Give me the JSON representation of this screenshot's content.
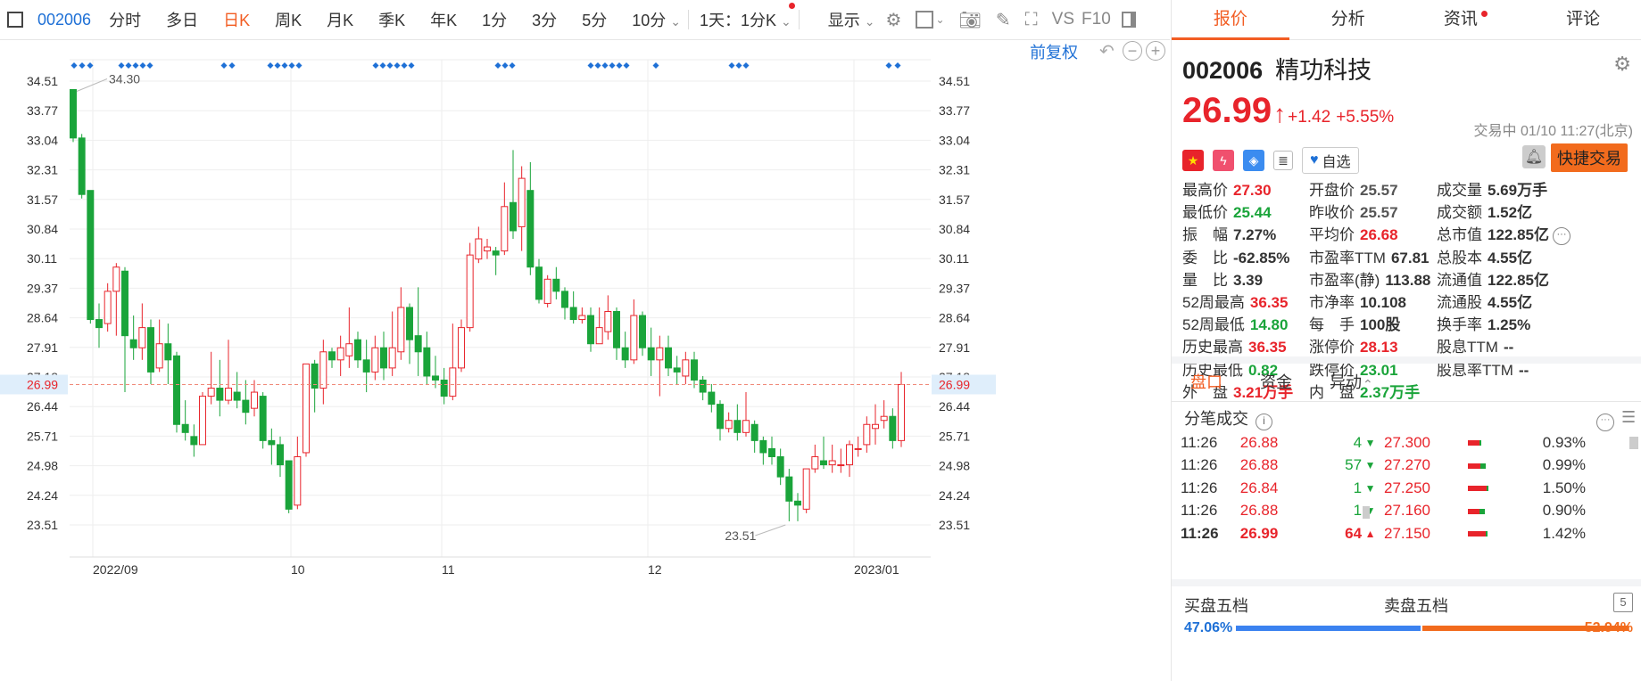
{
  "toolbar": {
    "code": "002006",
    "tabs": [
      "分时",
      "多日",
      "日K",
      "周K",
      "月K",
      "季K",
      "年K",
      "1分",
      "3分",
      "5分",
      "10分"
    ],
    "active_tab": "日K",
    "period_select": "1天：1分K",
    "display_select": "显示",
    "vs_label": "VS",
    "f10_label": "F10"
  },
  "chart": {
    "adjust_label": "前复权",
    "current_price_tag": "26.99",
    "y_ticks": [
      "34.51",
      "33.77",
      "33.04",
      "32.31",
      "31.57",
      "30.84",
      "30.11",
      "29.37",
      "28.64",
      "27.91",
      "27.18",
      "26.44",
      "25.71",
      "24.98",
      "24.24",
      "23.51"
    ],
    "x_labels": [
      "2022/09",
      "10",
      "11",
      "12",
      "2023/01"
    ],
    "high_label": "34.30",
    "low_label": "23.51"
  },
  "chart_data": {
    "type": "candlestick",
    "ylim": [
      23.2,
      34.8
    ],
    "current_price": 26.99,
    "max_annotation": 34.3,
    "min_annotation": 23.51,
    "candles": [
      [
        34.3,
        33.1,
        34.3,
        33.0
      ],
      [
        33.1,
        31.7,
        33.2,
        31.6
      ],
      [
        31.8,
        28.6,
        31.8,
        28.5
      ],
      [
        28.6,
        28.4,
        29.0,
        27.9
      ],
      [
        28.5,
        29.3,
        29.5,
        28.3
      ],
      [
        29.3,
        29.9,
        30.0,
        28.2
      ],
      [
        29.8,
        28.2,
        29.9,
        26.8
      ],
      [
        28.1,
        27.9,
        28.7,
        27.6
      ],
      [
        27.9,
        28.4,
        29.0,
        27.6
      ],
      [
        28.4,
        27.3,
        28.6,
        27.0
      ],
      [
        27.4,
        28.0,
        28.6,
        27.3
      ],
      [
        28.0,
        27.6,
        28.5,
        27.0
      ],
      [
        27.7,
        26.0,
        27.8,
        25.8
      ],
      [
        26.0,
        25.8,
        26.6,
        25.6
      ],
      [
        25.7,
        25.5,
        26.0,
        25.2
      ],
      [
        25.5,
        26.7,
        26.8,
        25.5
      ],
      [
        26.7,
        26.9,
        27.8,
        26.5
      ],
      [
        26.9,
        26.6,
        27.6,
        26.2
      ],
      [
        26.6,
        26.9,
        28.1,
        26.5
      ],
      [
        26.8,
        26.6,
        27.3,
        26.4
      ],
      [
        26.6,
        26.3,
        27.1,
        26.0
      ],
      [
        26.4,
        26.8,
        27.1,
        26.2
      ],
      [
        26.7,
        25.6,
        26.8,
        25.4
      ],
      [
        25.6,
        25.5,
        25.9,
        25.0
      ],
      [
        25.5,
        25.0,
        25.7,
        24.7
      ],
      [
        25.1,
        23.9,
        25.1,
        23.8
      ],
      [
        24.0,
        25.2,
        25.7,
        23.9
      ],
      [
        25.3,
        27.5,
        27.5,
        25.2
      ],
      [
        27.5,
        26.9,
        27.6,
        26.3
      ],
      [
        26.9,
        27.8,
        28.1,
        26.5
      ],
      [
        27.8,
        27.6,
        27.9,
        27.4
      ],
      [
        27.6,
        27.9,
        28.2,
        27.2
      ],
      [
        27.7,
        28.0,
        28.9,
        27.4
      ],
      [
        28.1,
        27.6,
        28.3,
        27.4
      ],
      [
        27.6,
        27.3,
        28.1,
        26.8
      ],
      [
        27.3,
        27.9,
        28.2,
        27.1
      ],
      [
        27.9,
        27.4,
        28.3,
        27.1
      ],
      [
        27.4,
        27.9,
        28.8,
        27.2
      ],
      [
        27.8,
        28.9,
        29.4,
        27.6
      ],
      [
        28.9,
        28.1,
        29.0,
        27.5
      ],
      [
        28.2,
        27.8,
        29.4,
        27.2
      ],
      [
        27.9,
        27.2,
        28.3,
        27.0
      ],
      [
        27.2,
        27.1,
        27.7,
        26.9
      ],
      [
        27.1,
        26.7,
        27.4,
        26.5
      ],
      [
        26.7,
        27.4,
        28.5,
        26.6
      ],
      [
        27.4,
        28.4,
        28.6,
        27.3
      ],
      [
        28.4,
        30.2,
        30.5,
        28.3
      ],
      [
        30.1,
        30.6,
        30.9,
        30.0
      ],
      [
        30.3,
        30.4,
        30.6,
        30.1
      ],
      [
        30.3,
        30.2,
        30.4,
        29.7
      ],
      [
        30.3,
        31.4,
        32.0,
        30.2
      ],
      [
        31.5,
        30.8,
        32.8,
        30.6
      ],
      [
        30.9,
        32.1,
        32.4,
        30.3
      ],
      [
        31.8,
        29.9,
        32.5,
        29.7
      ],
      [
        29.9,
        29.1,
        30.1,
        29.0
      ],
      [
        29.0,
        29.6,
        29.7,
        28.9
      ],
      [
        29.6,
        29.3,
        29.9,
        29.1
      ],
      [
        29.3,
        28.9,
        29.4,
        28.6
      ],
      [
        28.9,
        28.6,
        29.3,
        28.5
      ],
      [
        28.6,
        28.7,
        28.9,
        28.5
      ],
      [
        28.7,
        28.0,
        28.9,
        27.8
      ],
      [
        28.0,
        28.4,
        28.9,
        28.1
      ],
      [
        28.3,
        28.8,
        29.2,
        28.1
      ],
      [
        28.8,
        27.9,
        28.9,
        27.6
      ],
      [
        27.9,
        27.6,
        28.3,
        27.4
      ],
      [
        27.6,
        28.7,
        29.1,
        27.5
      ],
      [
        28.7,
        27.9,
        28.8,
        27.7
      ],
      [
        27.9,
        27.6,
        28.4,
        27.2
      ],
      [
        27.6,
        27.9,
        28.2,
        26.7
      ],
      [
        27.9,
        27.4,
        28.2,
        27.2
      ],
      [
        27.4,
        27.3,
        27.7,
        27.0
      ],
      [
        27.2,
        27.6,
        27.8,
        27.0
      ],
      [
        27.6,
        27.1,
        27.8,
        26.9
      ],
      [
        27.1,
        26.8,
        27.2,
        26.6
      ],
      [
        26.8,
        26.5,
        27.0,
        26.3
      ],
      [
        26.5,
        25.9,
        26.6,
        25.6
      ],
      [
        25.9,
        26.1,
        26.3,
        25.8
      ],
      [
        26.1,
        25.8,
        26.5,
        25.6
      ],
      [
        25.8,
        26.1,
        26.8,
        25.7
      ],
      [
        26.0,
        25.6,
        26.1,
        25.3
      ],
      [
        25.6,
        25.3,
        25.7,
        25.0
      ],
      [
        25.4,
        25.2,
        25.7,
        25.0
      ],
      [
        25.2,
        24.7,
        25.4,
        24.5
      ],
      [
        24.7,
        24.1,
        24.9,
        23.6
      ],
      [
        24.1,
        24.0,
        24.3,
        23.6
      ],
      [
        23.9,
        24.9,
        24.9,
        23.8
      ],
      [
        24.9,
        25.2,
        25.5,
        24.8
      ],
      [
        25.1,
        25.0,
        25.7,
        24.9
      ],
      [
        25.0,
        25.1,
        25.5,
        24.8
      ],
      [
        25.0,
        25.0,
        25.4,
        24.8
      ],
      [
        25.0,
        25.5,
        25.6,
        24.7
      ],
      [
        25.4,
        25.4,
        25.7,
        25.2
      ],
      [
        25.5,
        26.0,
        26.2,
        25.3
      ],
      [
        25.9,
        26.0,
        26.5,
        25.5
      ],
      [
        26.1,
        26.2,
        26.6,
        25.9
      ],
      [
        26.2,
        25.6,
        26.4,
        25.4
      ],
      [
        25.6,
        26.99,
        27.3,
        25.44
      ]
    ]
  },
  "panel": {
    "tabs": [
      "报价",
      "分析",
      "资讯",
      "评论"
    ],
    "active_tab": "报价",
    "code": "002006",
    "name": "精功科技",
    "price": "26.99",
    "change": "+1.42",
    "change_pct": "+5.55%",
    "time_info": "交易中 01/10 11:27(北京)",
    "favorite_label": "自选",
    "quick_trade_label": "快捷交易",
    "stats": [
      [
        {
          "label": "最高价",
          "value": "27.30",
          "color": "red"
        },
        {
          "label": "开盘价",
          "value": "25.57",
          "color": "gray"
        },
        {
          "label": "成交量",
          "value": "5.69万手",
          "color": "dark"
        }
      ],
      [
        {
          "label": "最低价",
          "value": "25.44",
          "color": "green"
        },
        {
          "label": "昨收价",
          "value": "25.57",
          "color": "gray"
        },
        {
          "label": "成交额",
          "value": "1.52亿",
          "color": "dark"
        }
      ],
      [
        {
          "label": "振　幅",
          "value": "7.27%",
          "color": "dark"
        },
        {
          "label": "平均价",
          "value": "26.68",
          "color": "red"
        },
        {
          "label": "总市值",
          "value": "122.85亿",
          "color": "dark"
        }
      ],
      [
        {
          "label": "委　比",
          "value": "-62.85%",
          "color": "dark"
        },
        {
          "label": "市盈率TTM",
          "value": "67.81",
          "color": "dark"
        },
        {
          "label": "总股本",
          "value": "4.55亿",
          "color": "dark"
        }
      ],
      [
        {
          "label": "量　比",
          "value": "3.39",
          "color": "dark"
        },
        {
          "label": "市盈率(静)",
          "value": "113.88",
          "color": "dark"
        },
        {
          "label": "流通值",
          "value": "122.85亿",
          "color": "dark"
        }
      ],
      [
        {
          "label": "52周最高",
          "value": "36.35",
          "color": "red"
        },
        {
          "label": "市净率",
          "value": "10.108",
          "color": "dark"
        },
        {
          "label": "流通股",
          "value": "4.55亿",
          "color": "dark"
        }
      ],
      [
        {
          "label": "52周最低",
          "value": "14.80",
          "color": "green"
        },
        {
          "label": "每　手",
          "value": "100股",
          "color": "dark"
        },
        {
          "label": "换手率",
          "value": "1.25%",
          "color": "dark"
        }
      ],
      [
        {
          "label": "历史最高",
          "value": "36.35",
          "color": "red"
        },
        {
          "label": "涨停价",
          "value": "28.13",
          "color": "red"
        },
        {
          "label": "股息TTM",
          "value": "--",
          "color": "dark"
        }
      ],
      [
        {
          "label": "历史最低",
          "value": "0.82",
          "color": "green"
        },
        {
          "label": "跌停价",
          "value": "23.01",
          "color": "green"
        },
        {
          "label": "股息率TTM",
          "value": "--",
          "color": "dark"
        }
      ],
      [
        {
          "label": "外　盘",
          "value": "3.21万手",
          "color": "red"
        },
        {
          "label": "内　盘",
          "value": "2.37万手",
          "color": "green"
        }
      ]
    ],
    "subtabs": [
      "盘口",
      "资金",
      "异动"
    ],
    "active_subtab": "盘口",
    "ticks_title": "分笔成交",
    "ticks": [
      {
        "time": "11:26",
        "price": "26.88",
        "vol": "4",
        "dir": "down"
      },
      {
        "time": "11:26",
        "price": "26.88",
        "vol": "57",
        "dir": "down"
      },
      {
        "time": "11:26",
        "price": "26.84",
        "vol": "1",
        "dir": "down"
      },
      {
        "time": "11:26",
        "price": "26.88",
        "vol": "1",
        "dir": "down"
      },
      {
        "time": "11:26",
        "price": "26.99",
        "vol": "64",
        "dir": "up"
      }
    ],
    "depth": [
      {
        "price": "27.300",
        "pct": "0.93%",
        "fill": 0.93
      },
      {
        "price": "27.270",
        "pct": "0.99%",
        "fill": 0.99
      },
      {
        "price": "27.250",
        "pct": "1.50%",
        "fill": 1.5
      },
      {
        "price": "27.160",
        "pct": "0.90%",
        "fill": 0.9
      },
      {
        "price": "27.150",
        "pct": "1.42%",
        "fill": 1.42
      }
    ],
    "buy_five_label": "买盘五档",
    "sell_five_label": "卖盘五档",
    "five_count": "5",
    "buy_pct": "47.06%",
    "sell_pct": "52.94%",
    "buy_fraction": 0.4706
  }
}
